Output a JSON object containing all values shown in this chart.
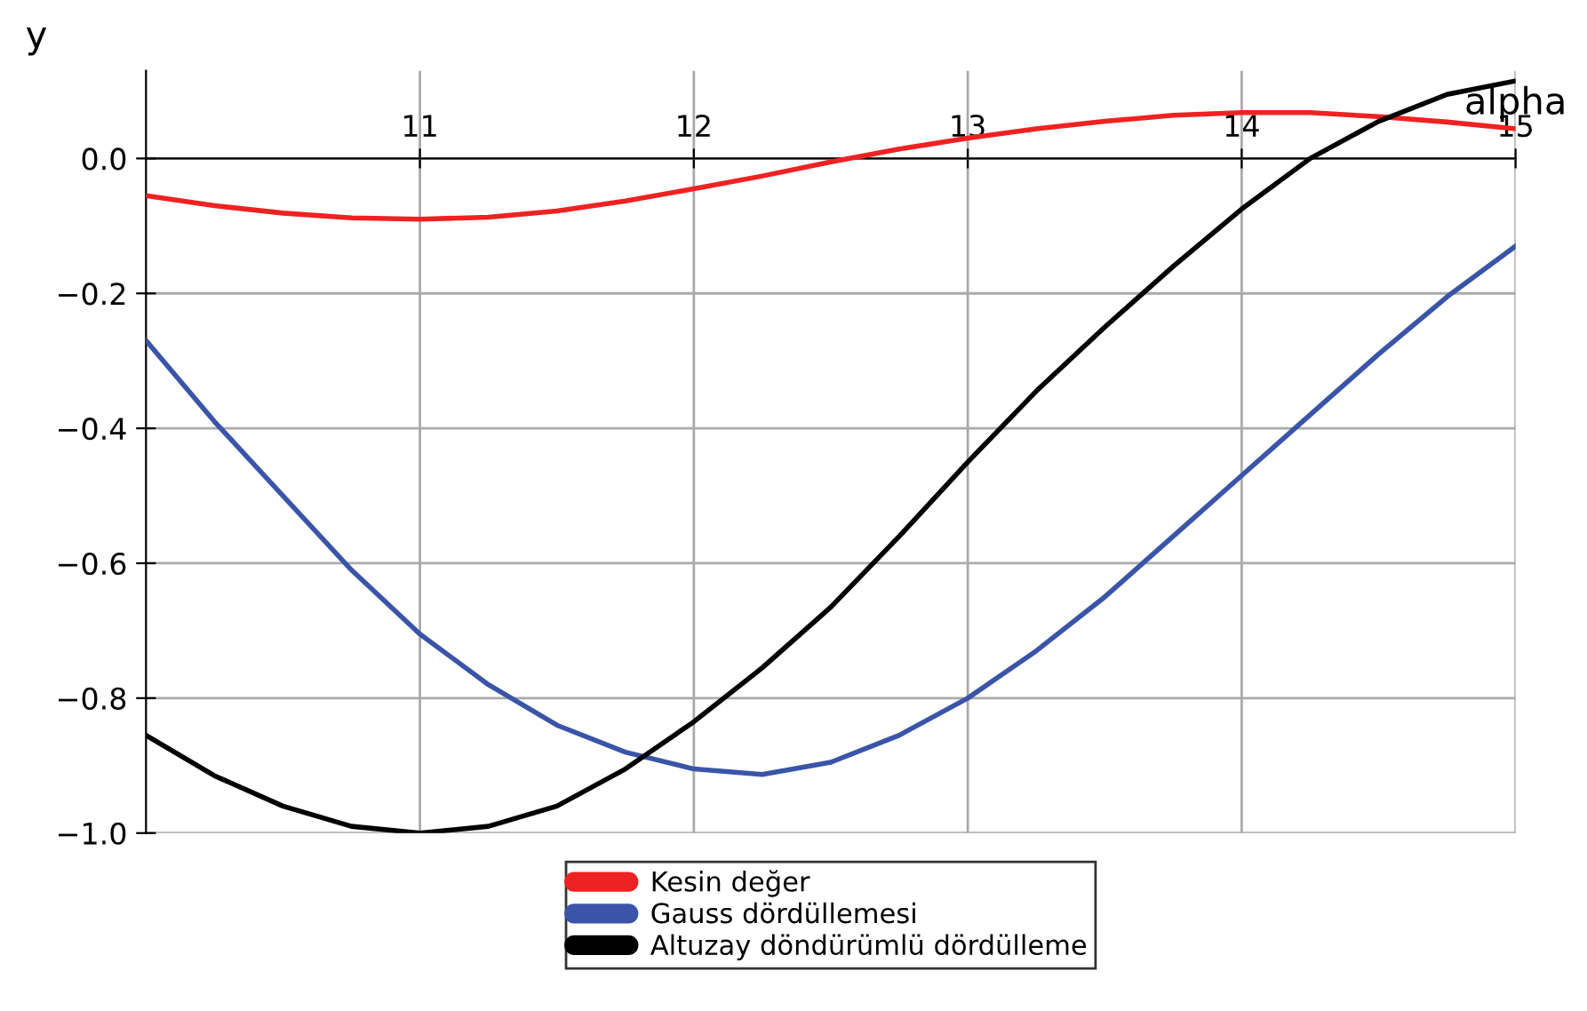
{
  "chart_data": {
    "type": "line",
    "xlabel": "alpha",
    "ylabel": "y",
    "x": [
      10,
      10.25,
      10.5,
      10.75,
      11,
      11.25,
      11.5,
      11.75,
      12,
      12.25,
      12.5,
      12.75,
      13,
      13.25,
      13.5,
      13.75,
      14,
      14.25,
      14.5,
      14.75,
      15
    ],
    "series": [
      {
        "name": "Kesin değer",
        "color": "#ee2222",
        "values": [
          -0.055,
          -0.07,
          -0.081,
          -0.088,
          -0.09,
          -0.087,
          -0.078,
          -0.063,
          -0.045,
          -0.026,
          -0.005,
          0.014,
          0.03,
          0.044,
          0.055,
          0.064,
          0.068,
          0.068,
          0.062,
          0.054,
          0.044
        ]
      },
      {
        "name": "Gauss dördüllemesi",
        "color": "#3a55a8",
        "values": [
          -0.27,
          -0.39,
          -0.5,
          -0.61,
          -0.705,
          -0.78,
          -0.84,
          -0.88,
          -0.905,
          -0.913,
          -0.895,
          -0.855,
          -0.8,
          -0.73,
          -0.65,
          -0.56,
          -0.47,
          -0.38,
          -0.29,
          -0.205,
          -0.13
        ]
      },
      {
        "name": "Altuzay döndürümlü dördülleme",
        "color": "#000000",
        "values": [
          -0.855,
          -0.915,
          -0.96,
          -0.99,
          -1.0,
          -0.99,
          -0.96,
          -0.905,
          -0.835,
          -0.755,
          -0.665,
          -0.56,
          -0.45,
          -0.345,
          -0.25,
          -0.16,
          -0.075,
          0.0,
          0.055,
          0.095,
          0.115
        ]
      }
    ],
    "xlim": [
      10,
      15
    ],
    "ylim": [
      -1.0,
      0.13
    ],
    "xticks": [
      11,
      12,
      13,
      14,
      15
    ],
    "yticks": [
      {
        "value": -1.0,
        "label": "−1.0"
      },
      {
        "value": -0.8,
        "label": "−0.8"
      },
      {
        "value": -0.6,
        "label": "−0.6"
      },
      {
        "value": -0.4,
        "label": "−0.4"
      },
      {
        "value": -0.2,
        "label": "−0.2"
      },
      {
        "value": 0.0,
        "label": "0.0"
      }
    ],
    "grid": true,
    "legend": "bottom",
    "line_style": "solid",
    "marker": "none"
  }
}
